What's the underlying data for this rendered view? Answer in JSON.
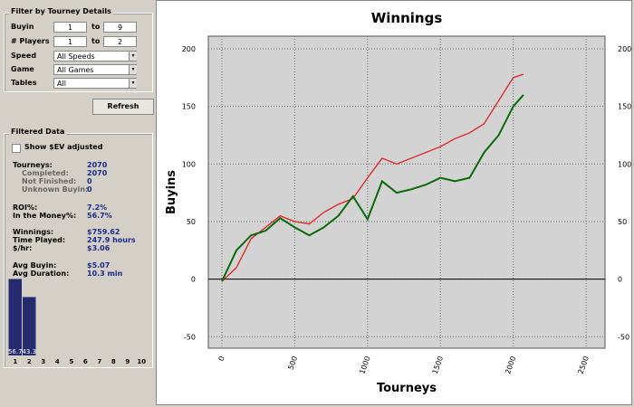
{
  "filter": {
    "title": "Filter by Tourney Details",
    "rows": [
      {
        "label": "Buyin",
        "from": "1",
        "to_label": "to",
        "to": "9"
      },
      {
        "label": "# Players",
        "from": "1",
        "to_label": "to",
        "to": "2"
      }
    ],
    "selects": [
      {
        "label": "Speed",
        "value": "All Speeds"
      },
      {
        "label": "Game",
        "value": "All Games"
      },
      {
        "label": "Tables",
        "value": "All"
      }
    ],
    "button": "Refresh"
  },
  "filtered_data": {
    "title": "Filtered Data",
    "checkbox": "Show $EV adjusted",
    "stats": [
      {
        "label": "Tourneys:",
        "value": "2070"
      },
      {
        "label": "Completed:",
        "value": "2070"
      },
      {
        "label": "Not Finished:",
        "value": "0"
      },
      {
        "label": "Unknown Buyin:",
        "value": "0"
      },
      {
        "label": "ROI%:",
        "value": "7.2%"
      },
      {
        "label": "In the Money%:",
        "value": "56.7%"
      },
      {
        "label": "Winnings:",
        "value": "$759.62"
      },
      {
        "label": "Time Played:",
        "value": "247.9 hours"
      },
      {
        "label": "$/hr:",
        "value": "$3.06"
      },
      {
        "label": "Avg Buyin:",
        "value": "$5.07"
      },
      {
        "label": "Avg Duration:",
        "value": "10.3 min"
      }
    ]
  },
  "chart_data": [
    {
      "type": "line",
      "title": "Winnings",
      "x_label": "Tourneys",
      "y_label": "Buyins",
      "x": [
        0,
        100,
        200,
        300,
        400,
        500,
        600,
        700,
        800,
        900,
        1000,
        1100,
        1200,
        1300,
        1400,
        1500,
        1600,
        1700,
        1800,
        1900,
        2000,
        2070
      ],
      "series": [
        {
          "color": "#e02020",
          "values": [
            -2,
            10,
            35,
            45,
            55,
            50,
            48,
            58,
            65,
            70,
            88,
            105,
            100,
            105,
            110,
            115,
            122,
            127,
            135,
            155,
            175,
            178
          ]
        },
        {
          "color": "#0a6a0a",
          "values": [
            -2,
            25,
            38,
            42,
            53,
            45,
            38,
            45,
            55,
            72,
            52,
            85,
            75,
            78,
            82,
            88,
            85,
            88,
            110,
            125,
            150,
            160
          ]
        }
      ],
      "xlim": [
        -93,
        2630
      ],
      "ylim": [
        -60,
        211
      ],
      "xticks": [
        0,
        500,
        1000,
        1500,
        2000,
        2500
      ],
      "yticks": [
        -50,
        0,
        50,
        100,
        150,
        200
      ],
      "grid": true
    },
    {
      "type": "bar",
      "categories": [
        "1",
        "2",
        "3",
        "4",
        "5",
        "6",
        "7",
        "8",
        "9",
        "10"
      ],
      "values": [
        56.7,
        43.3,
        0,
        0,
        0,
        0,
        0,
        0,
        0,
        0
      ],
      "color": "#262a6e",
      "ylim": [
        0,
        57
      ]
    }
  ]
}
